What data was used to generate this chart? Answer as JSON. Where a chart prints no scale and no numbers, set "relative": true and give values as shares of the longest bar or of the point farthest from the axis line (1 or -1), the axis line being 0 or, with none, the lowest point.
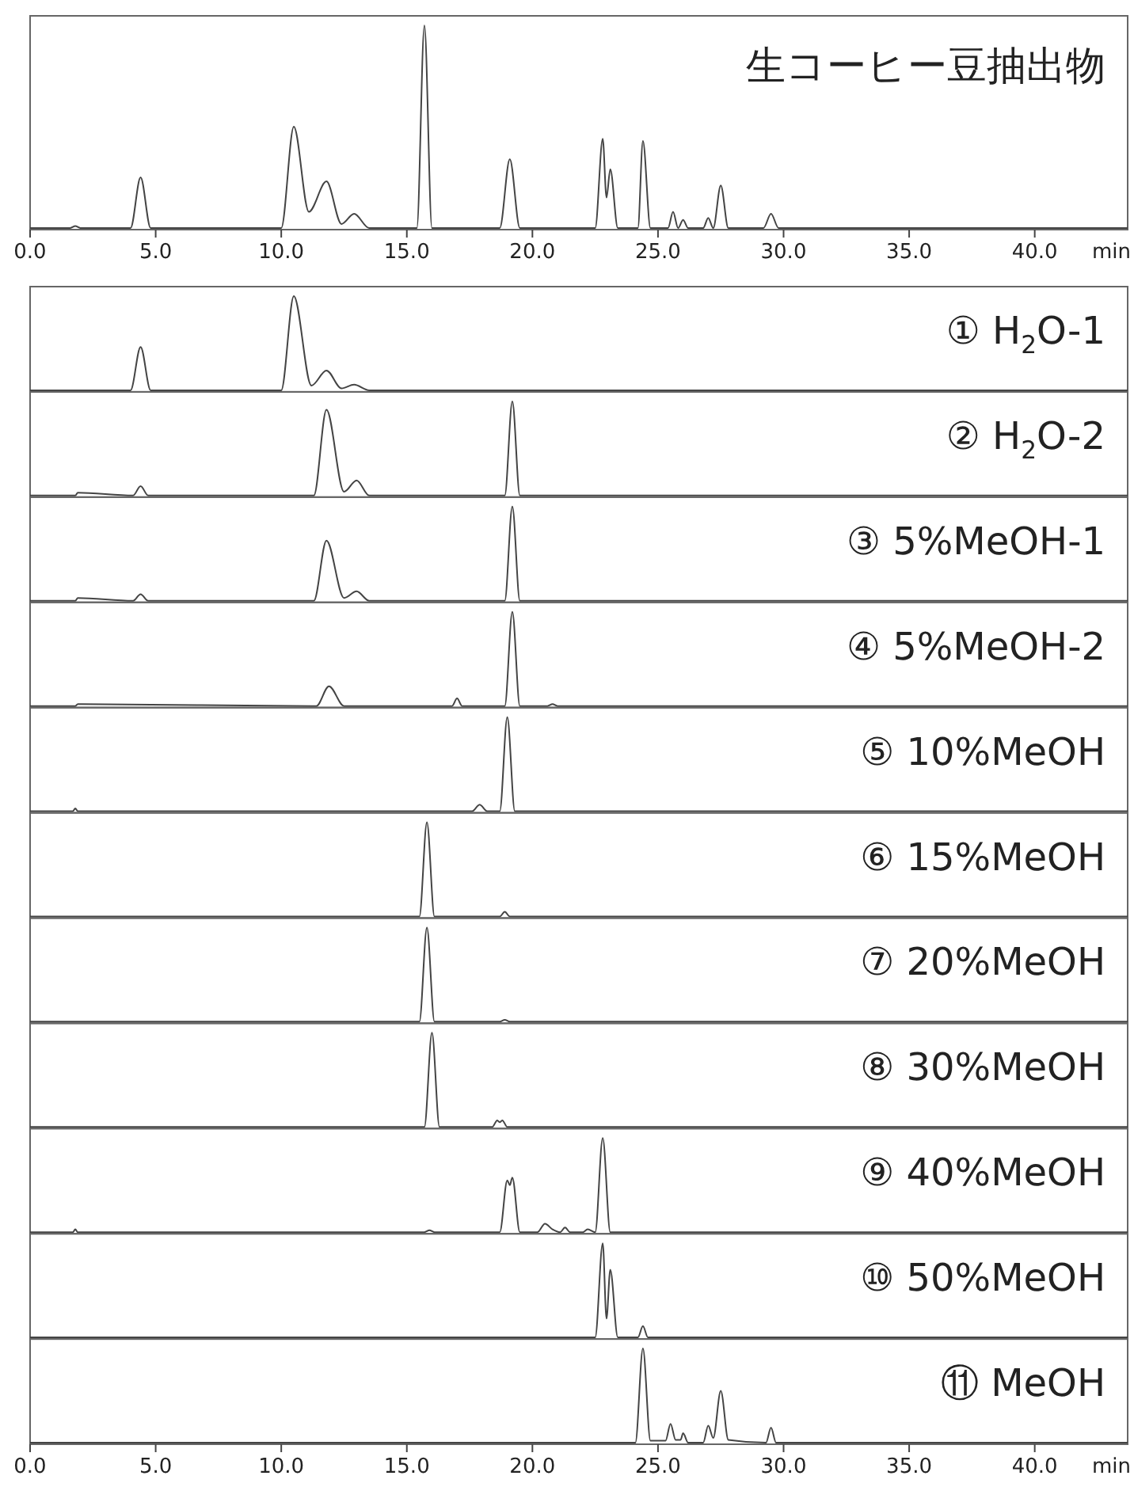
{
  "chart_data": [
    {
      "type": "line",
      "title": "生コーヒー豆抽出物",
      "relative": true,
      "color": "#444444",
      "xlabel": "min",
      "xlim": [
        0,
        43.7
      ],
      "xticks": [
        {
          "value": 0,
          "label": "0.0"
        },
        {
          "value": 5,
          "label": "5.0"
        },
        {
          "value": 10,
          "label": "10.0"
        },
        {
          "value": 15,
          "label": "15.0"
        },
        {
          "value": 20,
          "label": "20.0"
        },
        {
          "value": 25,
          "label": "25.0"
        },
        {
          "value": 30,
          "label": "30.0"
        },
        {
          "value": 35,
          "label": "35.0"
        },
        {
          "value": 40,
          "label": "40.0"
        }
      ],
      "x": [
        0,
        1.6,
        1.8,
        2.0,
        4.0,
        4.4,
        4.8,
        10.0,
        10.5,
        11.1,
        11.8,
        12.4,
        12.9,
        13.5,
        15.4,
        15.7,
        16.0,
        18.7,
        19.1,
        19.5,
        22.5,
        22.8,
        22.95,
        23.1,
        23.4,
        24.2,
        24.4,
        24.7,
        25.4,
        25.6,
        25.8,
        26.0,
        26.2,
        26.8,
        27.0,
        27.2,
        27.5,
        27.8,
        29.2,
        29.5,
        29.8,
        43.7
      ],
      "values": [
        0,
        0,
        0.01,
        0,
        0,
        0.25,
        0,
        0,
        0.5,
        0.08,
        0.23,
        0.02,
        0.07,
        0,
        0,
        1,
        0,
        0,
        0.34,
        0,
        0,
        0.44,
        0.15,
        0.29,
        0,
        0,
        0.43,
        0,
        0,
        0.08,
        0,
        0.04,
        0,
        0,
        0.05,
        0,
        0.21,
        0,
        0,
        0.07,
        0,
        0
      ]
    },
    {
      "type": "line",
      "title": "① H$_{2}$O-1",
      "relative": true,
      "color": "#444444",
      "tick_labels": false,
      "xlim": [
        0,
        43.7
      ],
      "x": [
        0,
        4.0,
        4.4,
        4.8,
        10.0,
        10.5,
        11.2,
        11.8,
        12.4,
        12.9,
        13.5,
        43.7
      ],
      "values": [
        0,
        0,
        0.46,
        0,
        0,
        1,
        0.05,
        0.21,
        0.02,
        0.06,
        0,
        0
      ]
    },
    {
      "type": "line",
      "title": "② H$_{2}$O-2",
      "relative": true,
      "color": "#444444",
      "tick_labels": false,
      "xlim": [
        0,
        43.7
      ],
      "x": [
        0,
        1.7,
        1.8,
        1.9,
        4.1,
        4.4,
        4.7,
        11.3,
        11.8,
        12.5,
        13.0,
        13.5,
        18.9,
        19.2,
        19.5,
        43.7
      ],
      "values": [
        0,
        0,
        0.0,
        0.03,
        0,
        0.1,
        0,
        0,
        0.91,
        0.04,
        0.16,
        0,
        0,
        1,
        0,
        0
      ]
    },
    {
      "type": "line",
      "title": "③ 5%MeOH-1",
      "relative": true,
      "color": "#444444",
      "tick_labels": false,
      "xlim": [
        0,
        43.7
      ],
      "x": [
        0,
        1.7,
        1.8,
        1.9,
        4.1,
        4.4,
        4.7,
        11.3,
        11.8,
        12.5,
        13.0,
        13.5,
        18.9,
        19.2,
        19.5,
        43.7
      ],
      "values": [
        0,
        0,
        0.0,
        0.03,
        0,
        0.07,
        0,
        0,
        0.64,
        0.03,
        0.1,
        0,
        0,
        1,
        0,
        0
      ]
    },
    {
      "type": "line",
      "title": "④ 5%MeOH-2",
      "relative": true,
      "color": "#444444",
      "tick_labels": false,
      "xlim": [
        0,
        43.7
      ],
      "x": [
        0,
        1.7,
        1.8,
        1.9,
        11.4,
        11.9,
        12.5,
        16.8,
        17.0,
        17.2,
        18.9,
        19.2,
        19.5,
        20.6,
        20.8,
        21.0,
        43.7
      ],
      "values": [
        0,
        0,
        0.0,
        0.02,
        0,
        0.21,
        0,
        0,
        0.08,
        0,
        0,
        1,
        0,
        0,
        0.02,
        0,
        0
      ]
    },
    {
      "type": "line",
      "title": "⑤ 10%MeOH",
      "relative": true,
      "color": "#444444",
      "tick_labels": false,
      "xlim": [
        0,
        43.7
      ],
      "x": [
        0,
        1.7,
        1.8,
        1.9,
        17.6,
        17.9,
        18.2,
        18.7,
        19.0,
        19.3,
        43.7
      ],
      "values": [
        0,
        0,
        0.03,
        0.0,
        0,
        0.07,
        0,
        0,
        1,
        0,
        0
      ]
    },
    {
      "type": "line",
      "title": "⑥ 15%MeOH",
      "relative": true,
      "color": "#444444",
      "tick_labels": false,
      "xlim": [
        0,
        43.7
      ],
      "x": [
        0,
        15.5,
        15.8,
        16.1,
        18.7,
        18.9,
        19.1,
        43.7
      ],
      "values": [
        0,
        0,
        1,
        0,
        0,
        0.05,
        0,
        0
      ]
    },
    {
      "type": "line",
      "title": "⑦ 20%MeOH",
      "relative": true,
      "color": "#444444",
      "tick_labels": false,
      "xlim": [
        0,
        43.7
      ],
      "x": [
        0,
        15.5,
        15.8,
        16.1,
        18.7,
        18.9,
        19.1,
        43.7
      ],
      "values": [
        0,
        0,
        1,
        0,
        0,
        0.02,
        0,
        0
      ]
    },
    {
      "type": "line",
      "title": "⑧ 30%MeOH",
      "relative": true,
      "color": "#444444",
      "tick_labels": false,
      "xlim": [
        0,
        43.7
      ],
      "x": [
        0,
        15.7,
        16.0,
        16.3,
        18.4,
        18.6,
        18.7,
        18.8,
        19.0,
        43.7
      ],
      "values": [
        0,
        0,
        1,
        0,
        0,
        0.07,
        0.05,
        0.07,
        0,
        0
      ]
    },
    {
      "type": "line",
      "title": "⑨ 40%MeOH",
      "relative": true,
      "color": "#444444",
      "tick_labels": false,
      "xlim": [
        0,
        43.7
      ],
      "x": [
        0,
        1.7,
        1.8,
        1.9,
        15.7,
        15.9,
        16.1,
        18.7,
        19.0,
        19.1,
        19.2,
        19.5,
        20.2,
        20.5,
        20.8,
        21.1,
        21.3,
        21.5,
        22.0,
        22.2,
        22.5,
        22.8,
        23.1,
        43.7
      ],
      "values": [
        0,
        0,
        0.03,
        0.0,
        0,
        0.02,
        0,
        0,
        0.55,
        0.5,
        0.58,
        0,
        0,
        0.09,
        0.03,
        0,
        0.05,
        0,
        0,
        0.03,
        0,
        1,
        0,
        0
      ]
    },
    {
      "type": "line",
      "title": "⑩ 50%MeOH",
      "relative": true,
      "color": "#444444",
      "tick_labels": false,
      "xlim": [
        0,
        43.7
      ],
      "x": [
        0,
        22.5,
        22.8,
        22.95,
        23.1,
        23.4,
        24.2,
        24.4,
        24.6,
        43.7
      ],
      "values": [
        0,
        0,
        1,
        0.2,
        0.72,
        0,
        0,
        0.12,
        0,
        0
      ]
    },
    {
      "type": "line",
      "title": "⑪ MeOH",
      "relative": true,
      "color": "#444444",
      "xlabel": "min",
      "xlim": [
        0,
        43.7
      ],
      "xticks": [
        {
          "value": 0,
          "label": "0.0"
        },
        {
          "value": 5,
          "label": "5.0"
        },
        {
          "value": 10,
          "label": "10.0"
        },
        {
          "value": 15,
          "label": "15.0"
        },
        {
          "value": 20,
          "label": "20.0"
        },
        {
          "value": 25,
          "label": "25.0"
        },
        {
          "value": 30,
          "label": "30.0"
        },
        {
          "value": 35,
          "label": "35.0"
        },
        {
          "value": 40,
          "label": "40.0"
        }
      ],
      "x": [
        0,
        24.1,
        24.4,
        24.7,
        25.3,
        25.5,
        25.7,
        25.9,
        26.0,
        26.2,
        26.8,
        27.0,
        27.2,
        27.5,
        27.8,
        29.3,
        29.5,
        29.7,
        43.7
      ],
      "values": [
        0,
        0,
        1,
        0.02,
        0.02,
        0.2,
        0.03,
        0.03,
        0.1,
        0,
        0,
        0.18,
        0.05,
        0.55,
        0.03,
        0,
        0.16,
        0,
        0
      ]
    }
  ]
}
